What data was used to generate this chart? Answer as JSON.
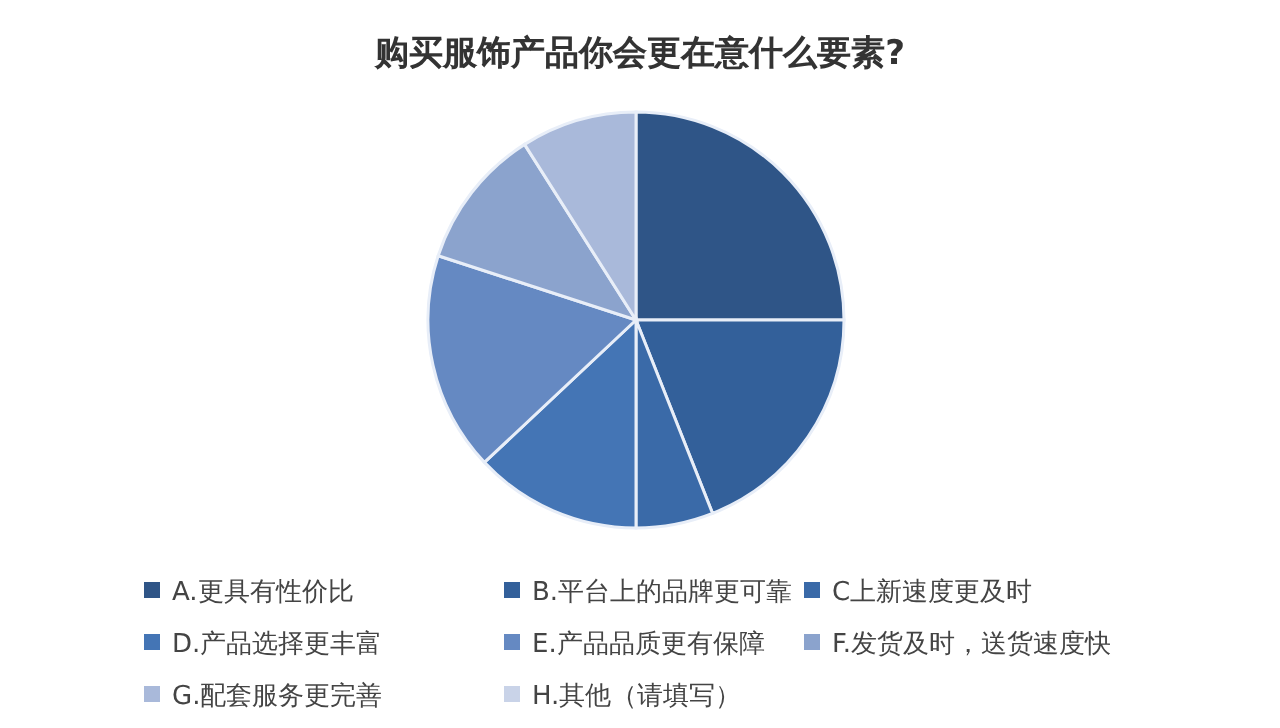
{
  "chart_data": {
    "type": "pie",
    "title": "购买服饰产品你会更在意什么要素?",
    "categories": [
      "A.更具有性价比",
      "B.平台上的品牌更可靠",
      "C上新速度更及时",
      "D.产品选择更丰富",
      "E.产品品质更有保障",
      "F.发货及时，送货速度快",
      "G.配套服务更完善",
      "H.其他（请填写）"
    ],
    "values": [
      25,
      19,
      6,
      13,
      17,
      11,
      9,
      0
    ],
    "colors": [
      "#2f5587",
      "#33609a",
      "#3a6aa8",
      "#4475b5",
      "#6589c2",
      "#8ba3cd",
      "#a9b9da",
      "#c9d3e8"
    ],
    "legend": "bottom"
  }
}
